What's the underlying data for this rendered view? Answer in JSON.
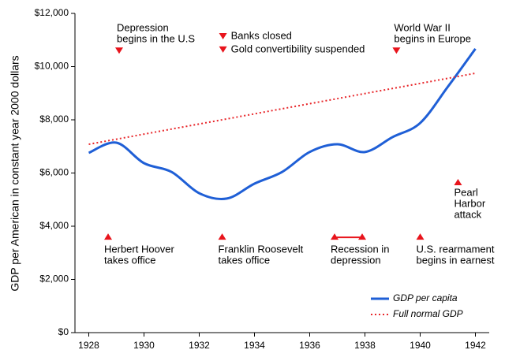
{
  "chart_data": {
    "type": "line",
    "ylabel": "GDP per American in constant year 2000 dollars",
    "xlim": [
      1927.5,
      1942.5
    ],
    "xticks": [
      1928,
      1930,
      1932,
      1934,
      1936,
      1938,
      1940,
      1942
    ],
    "ylim": [
      0,
      12000
    ],
    "yticks": [
      {
        "value": 0,
        "label": "$0"
      },
      {
        "value": 2000,
        "label": "$2,000"
      },
      {
        "value": 4000,
        "label": "$4,000"
      },
      {
        "value": 6000,
        "label": "$6,000"
      },
      {
        "value": 8000,
        "label": "$8,000"
      },
      {
        "value": 10000,
        "label": "$10,000"
      },
      {
        "value": 12000,
        "label": "$12,000"
      }
    ],
    "grid": false,
    "legend": "lower right",
    "series": [
      {
        "name": "GDP per capita",
        "color": "#1f5fd6",
        "style": "solid",
        "x": [
          1928,
          1929,
          1930,
          1931,
          1932,
          1933,
          1934,
          1935,
          1936,
          1937,
          1938,
          1939,
          1940,
          1941,
          1942
        ],
        "values": [
          6760,
          7140,
          6370,
          6040,
          5240,
          5040,
          5600,
          6040,
          6790,
          7080,
          6790,
          7350,
          7880,
          9240,
          10670
        ]
      },
      {
        "name": "Full normal GDP",
        "color": "#e8262a",
        "style": "dotted",
        "x": [
          1928,
          1942
        ],
        "values": [
          7080,
          9750
        ]
      }
    ],
    "annotations": [
      {
        "text": [
          "Depression",
          "begins in the U.S"
        ],
        "x": 1929.1,
        "y": 10600,
        "direction": "down"
      },
      {
        "text": [
          "Banks closed"
        ],
        "x": 1932.86,
        "y": 11140,
        "direction": "down"
      },
      {
        "text": [
          "Gold convertibility suspended"
        ],
        "x": 1932.86,
        "y": 10640,
        "direction": "down"
      },
      {
        "text": [
          "World War II",
          "begins in Europe"
        ],
        "x": 1939.14,
        "y": 10600,
        "direction": "down"
      },
      {
        "text": [
          "Herbert Hoover",
          "takes office"
        ],
        "x": 1928.7,
        "y": 3610,
        "direction": "up"
      },
      {
        "text": [
          "Franklin Roosevelt",
          "takes office"
        ],
        "x": 1932.83,
        "y": 3610,
        "direction": "up"
      },
      {
        "text": [
          "Recession in",
          "depression"
        ],
        "x": 1936.9,
        "x_end": 1937.9,
        "y": 3610,
        "direction": "up"
      },
      {
        "text": [
          "U.S. rearmament",
          "begins in earnest"
        ],
        "x": 1940.0,
        "y": 3610,
        "direction": "up"
      },
      {
        "text": [
          "Pearl",
          "Harbor",
          "attack"
        ],
        "x": 1941.37,
        "y": 5660,
        "direction": "up"
      }
    ],
    "annotation_color": "#e8141c"
  }
}
